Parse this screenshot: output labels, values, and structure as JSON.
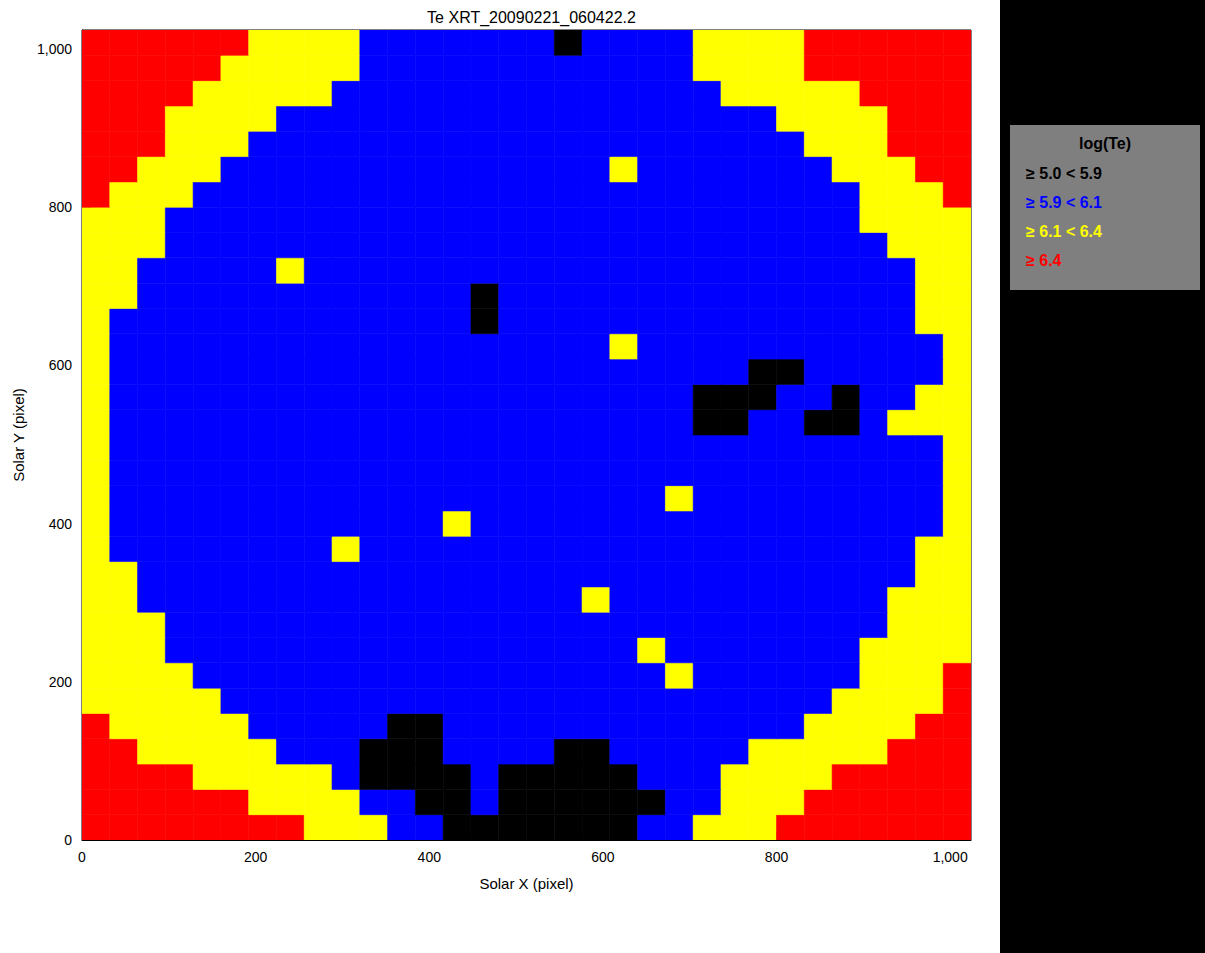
{
  "chart_data": {
    "type": "heatmap",
    "title": "Te XRT_20090221_060422.2",
    "x_label": "Solar X (pixel)",
    "y_label": "Solar Y (pixel)",
    "x": [
      16,
      48,
      80,
      112,
      144,
      176,
      208,
      240,
      272,
      304,
      336,
      368,
      400,
      432,
      464,
      496,
      528,
      560,
      592,
      624,
      656,
      688,
      720,
      752,
      784,
      816,
      848,
      880,
      912,
      944,
      976,
      1008
    ],
    "y": [
      16,
      48,
      80,
      112,
      144,
      176,
      208,
      240,
      272,
      304,
      336,
      368,
      400,
      432,
      464,
      496,
      528,
      560,
      592,
      624,
      656,
      688,
      720,
      752,
      784,
      816,
      848,
      880,
      912,
      944,
      976,
      1008
    ],
    "cells": [
      [
        6.5,
        6.5,
        6.5,
        6.5,
        6.5,
        6.5,
        6.5,
        6.5,
        6.2,
        6.2,
        6.2,
        6.0,
        6.0,
        5.8,
        5.8,
        5.8,
        5.8,
        5.8,
        5.8,
        5.8,
        6.0,
        6.0,
        6.2,
        6.2,
        6.2,
        6.5,
        6.5,
        6.5,
        6.5,
        6.5,
        6.5,
        6.5
      ],
      [
        6.5,
        6.5,
        6.5,
        6.5,
        6.5,
        6.5,
        6.2,
        6.2,
        6.2,
        6.2,
        6.0,
        6.0,
        5.8,
        5.8,
        6.0,
        5.8,
        5.8,
        5.8,
        5.8,
        5.8,
        5.8,
        6.0,
        6.0,
        6.2,
        6.2,
        6.2,
        6.5,
        6.5,
        6.5,
        6.5,
        6.5,
        6.5
      ],
      [
        6.5,
        6.5,
        6.5,
        6.5,
        6.2,
        6.2,
        6.2,
        6.2,
        6.2,
        6.0,
        5.8,
        5.8,
        5.8,
        5.8,
        6.0,
        5.8,
        5.8,
        5.8,
        5.8,
        5.8,
        6.0,
        6.0,
        6.0,
        6.2,
        6.2,
        6.2,
        6.2,
        6.5,
        6.5,
        6.5,
        6.5,
        6.5
      ],
      [
        6.5,
        6.5,
        6.2,
        6.2,
        6.2,
        6.2,
        6.2,
        6.0,
        6.0,
        6.0,
        5.8,
        5.8,
        5.8,
        6.0,
        6.0,
        6.0,
        6.0,
        5.8,
        5.8,
        6.0,
        6.0,
        6.0,
        6.0,
        6.0,
        6.2,
        6.2,
        6.2,
        6.2,
        6.2,
        6.5,
        6.5,
        6.5
      ],
      [
        6.5,
        6.2,
        6.2,
        6.2,
        6.2,
        6.2,
        6.0,
        6.0,
        6.0,
        6.0,
        6.0,
        5.8,
        5.8,
        6.0,
        6.0,
        6.0,
        6.0,
        6.0,
        6.0,
        6.0,
        6.0,
        6.0,
        6.0,
        6.0,
        6.0,
        6.0,
        6.2,
        6.2,
        6.2,
        6.2,
        6.5,
        6.5
      ],
      [
        6.2,
        6.2,
        6.2,
        6.2,
        6.2,
        6.0,
        6.0,
        6.0,
        6.0,
        6.0,
        6.0,
        6.0,
        6.0,
        6.0,
        6.0,
        6.0,
        6.0,
        6.0,
        6.0,
        6.0,
        6.0,
        6.0,
        6.0,
        6.0,
        6.0,
        6.0,
        6.0,
        6.2,
        6.2,
        6.2,
        6.2,
        6.5
      ],
      [
        6.2,
        6.2,
        6.2,
        6.2,
        6.0,
        6.0,
        6.0,
        6.0,
        6.0,
        6.0,
        6.0,
        6.0,
        6.0,
        6.0,
        6.0,
        6.0,
        6.0,
        6.0,
        6.0,
        6.0,
        6.0,
        6.2,
        6.0,
        6.0,
        6.0,
        6.0,
        6.0,
        6.0,
        6.2,
        6.2,
        6.2,
        6.5
      ],
      [
        6.2,
        6.2,
        6.2,
        6.0,
        6.0,
        6.0,
        6.0,
        6.0,
        6.0,
        6.0,
        6.0,
        6.0,
        6.0,
        6.0,
        6.0,
        6.0,
        6.0,
        6.0,
        6.0,
        6.0,
        6.2,
        6.0,
        6.0,
        6.0,
        6.0,
        6.0,
        6.0,
        6.0,
        6.2,
        6.2,
        6.2,
        6.2
      ],
      [
        6.2,
        6.2,
        6.2,
        6.0,
        6.0,
        6.0,
        6.0,
        6.0,
        6.0,
        6.0,
        6.0,
        6.0,
        6.0,
        6.0,
        6.0,
        6.0,
        6.0,
        6.0,
        6.0,
        6.0,
        6.0,
        6.0,
        6.0,
        6.0,
        6.0,
        6.0,
        6.0,
        6.0,
        6.0,
        6.2,
        6.2,
        6.2
      ],
      [
        6.2,
        6.2,
        6.0,
        6.0,
        6.0,
        6.0,
        6.0,
        6.0,
        6.0,
        6.0,
        6.0,
        6.0,
        6.0,
        6.0,
        6.0,
        6.0,
        6.0,
        6.0,
        6.2,
        6.0,
        6.0,
        6.0,
        6.0,
        6.0,
        6.0,
        6.0,
        6.0,
        6.0,
        6.0,
        6.2,
        6.2,
        6.2
      ],
      [
        6.2,
        6.2,
        6.0,
        6.0,
        6.0,
        6.0,
        6.0,
        6.0,
        6.0,
        6.0,
        6.0,
        6.0,
        6.0,
        6.0,
        6.0,
        6.0,
        6.0,
        6.0,
        6.0,
        6.0,
        6.0,
        6.0,
        6.0,
        6.0,
        6.0,
        6.0,
        6.0,
        6.0,
        6.0,
        6.0,
        6.2,
        6.2
      ],
      [
        6.2,
        6.0,
        6.0,
        6.0,
        6.0,
        6.0,
        6.0,
        6.0,
        6.0,
        6.2,
        6.0,
        6.0,
        6.0,
        6.0,
        6.0,
        6.0,
        6.0,
        6.0,
        6.0,
        6.0,
        6.0,
        6.0,
        6.0,
        6.0,
        6.0,
        6.0,
        6.0,
        6.0,
        6.0,
        6.0,
        6.2,
        6.2
      ],
      [
        6.2,
        6.0,
        6.0,
        6.0,
        6.0,
        6.0,
        6.0,
        6.0,
        6.0,
        6.0,
        6.0,
        6.0,
        6.0,
        6.2,
        6.0,
        6.0,
        6.0,
        6.0,
        6.0,
        6.0,
        6.0,
        6.0,
        6.0,
        6.0,
        6.0,
        6.0,
        6.0,
        6.0,
        6.0,
        6.0,
        6.0,
        6.2
      ],
      [
        6.2,
        6.0,
        6.0,
        6.0,
        6.0,
        6.0,
        6.0,
        6.0,
        6.0,
        6.0,
        6.0,
        6.0,
        6.0,
        6.0,
        6.0,
        6.0,
        6.0,
        6.0,
        6.0,
        6.0,
        6.0,
        6.2,
        6.0,
        6.0,
        6.0,
        6.0,
        6.0,
        6.0,
        6.0,
        6.0,
        6.0,
        6.2
      ],
      [
        6.2,
        6.0,
        6.0,
        6.0,
        6.0,
        6.0,
        6.0,
        6.0,
        6.0,
        6.0,
        6.0,
        6.0,
        6.0,
        6.0,
        6.0,
        6.0,
        6.0,
        6.0,
        6.0,
        6.0,
        6.0,
        6.0,
        6.0,
        6.0,
        6.0,
        6.0,
        6.0,
        6.0,
        6.0,
        6.0,
        6.0,
        6.2
      ],
      [
        6.2,
        6.0,
        6.0,
        6.0,
        6.0,
        6.0,
        6.0,
        6.0,
        6.0,
        6.0,
        6.0,
        6.0,
        6.0,
        6.0,
        6.0,
        6.0,
        6.0,
        6.0,
        6.0,
        6.0,
        6.0,
        6.0,
        6.0,
        6.0,
        6.0,
        6.0,
        6.0,
        6.0,
        6.0,
        6.0,
        6.0,
        6.2
      ],
      [
        6.2,
        6.0,
        6.0,
        6.0,
        6.0,
        6.0,
        6.0,
        6.0,
        6.0,
        6.0,
        6.0,
        6.0,
        6.0,
        6.0,
        6.0,
        6.0,
        6.0,
        6.0,
        6.0,
        6.0,
        6.0,
        6.0,
        5.8,
        5.8,
        6.0,
        6.0,
        5.8,
        5.8,
        6.0,
        6.2,
        6.2,
        6.2
      ],
      [
        6.2,
        6.0,
        6.0,
        6.0,
        6.0,
        6.0,
        6.0,
        6.0,
        6.0,
        6.0,
        6.0,
        6.0,
        6.0,
        6.0,
        6.0,
        6.0,
        6.0,
        6.0,
        6.0,
        6.0,
        6.0,
        6.0,
        5.8,
        5.8,
        5.8,
        6.0,
        6.0,
        5.8,
        6.0,
        6.0,
        6.2,
        6.2
      ],
      [
        6.2,
        6.0,
        6.0,
        6.0,
        6.0,
        6.0,
        6.0,
        6.0,
        6.0,
        6.0,
        6.0,
        6.0,
        6.0,
        6.0,
        6.0,
        6.0,
        6.0,
        6.0,
        6.0,
        6.0,
        6.0,
        6.0,
        6.0,
        6.0,
        5.8,
        5.8,
        6.0,
        6.0,
        6.0,
        6.0,
        6.0,
        6.2
      ],
      [
        6.2,
        6.0,
        6.0,
        6.0,
        6.0,
        6.0,
        6.0,
        6.0,
        6.0,
        6.0,
        6.0,
        6.0,
        6.0,
        6.0,
        6.0,
        6.0,
        6.0,
        6.0,
        6.0,
        6.2,
        6.0,
        6.0,
        6.0,
        6.0,
        6.0,
        6.0,
        6.0,
        6.0,
        6.0,
        6.0,
        6.0,
        6.2
      ],
      [
        6.2,
        6.0,
        6.0,
        6.0,
        6.0,
        6.0,
        6.0,
        6.0,
        6.0,
        6.0,
        6.0,
        6.0,
        6.0,
        6.0,
        5.8,
        6.0,
        6.0,
        6.0,
        6.0,
        6.0,
        6.0,
        6.0,
        6.0,
        6.0,
        6.0,
        6.0,
        6.0,
        6.0,
        6.0,
        6.0,
        6.2,
        6.2
      ],
      [
        6.2,
        6.2,
        6.0,
        6.0,
        6.0,
        6.0,
        6.0,
        6.0,
        6.0,
        6.0,
        6.0,
        6.0,
        6.0,
        6.0,
        5.8,
        6.0,
        6.0,
        6.0,
        6.0,
        6.0,
        6.0,
        6.0,
        6.0,
        6.0,
        6.0,
        6.0,
        6.0,
        6.0,
        6.0,
        6.0,
        6.2,
        6.2
      ],
      [
        6.2,
        6.2,
        6.0,
        6.0,
        6.0,
        6.0,
        6.0,
        6.2,
        6.0,
        6.0,
        6.0,
        6.0,
        6.0,
        6.0,
        6.0,
        6.0,
        6.0,
        6.0,
        6.0,
        6.0,
        6.0,
        6.0,
        6.0,
        6.0,
        6.0,
        6.0,
        6.0,
        6.0,
        6.0,
        6.0,
        6.2,
        6.2
      ],
      [
        6.2,
        6.2,
        6.2,
        6.0,
        6.0,
        6.0,
        6.0,
        6.0,
        6.0,
        6.0,
        6.0,
        6.0,
        6.0,
        6.0,
        6.0,
        6.0,
        6.0,
        6.0,
        6.0,
        6.0,
        6.0,
        6.0,
        6.0,
        6.0,
        6.0,
        6.0,
        6.0,
        6.0,
        6.0,
        6.2,
        6.2,
        6.2
      ],
      [
        6.2,
        6.2,
        6.2,
        6.0,
        6.0,
        6.0,
        6.0,
        6.0,
        6.0,
        6.0,
        6.0,
        6.0,
        6.0,
        6.0,
        6.0,
        6.0,
        6.0,
        6.0,
        6.0,
        6.0,
        6.0,
        6.0,
        6.0,
        6.0,
        6.0,
        6.0,
        6.0,
        6.0,
        6.2,
        6.2,
        6.2,
        6.2
      ],
      [
        6.5,
        6.2,
        6.2,
        6.2,
        6.0,
        6.0,
        6.0,
        6.0,
        6.0,
        6.0,
        6.0,
        6.0,
        6.0,
        6.0,
        6.0,
        6.0,
        6.0,
        6.0,
        6.0,
        6.0,
        6.0,
        6.0,
        6.0,
        6.0,
        6.0,
        6.0,
        6.0,
        6.0,
        6.2,
        6.2,
        6.2,
        6.5
      ],
      [
        6.5,
        6.5,
        6.2,
        6.2,
        6.2,
        6.0,
        6.0,
        6.0,
        6.0,
        6.0,
        6.0,
        6.0,
        6.0,
        6.0,
        6.0,
        6.0,
        6.0,
        6.0,
        6.0,
        6.2,
        6.0,
        6.0,
        6.0,
        6.0,
        6.0,
        6.0,
        6.0,
        6.2,
        6.2,
        6.2,
        6.5,
        6.5
      ],
      [
        6.5,
        6.5,
        6.5,
        6.2,
        6.2,
        6.2,
        6.0,
        6.0,
        6.0,
        6.0,
        6.0,
        6.0,
        6.0,
        6.0,
        6.0,
        6.0,
        6.0,
        6.0,
        6.0,
        6.0,
        6.0,
        6.0,
        6.0,
        6.0,
        6.0,
        6.0,
        6.2,
        6.2,
        6.2,
        6.5,
        6.5,
        6.5
      ],
      [
        6.5,
        6.5,
        6.5,
        6.2,
        6.2,
        6.2,
        6.2,
        6.0,
        6.0,
        6.0,
        6.0,
        6.0,
        6.0,
        6.0,
        6.0,
        6.0,
        6.0,
        6.0,
        6.0,
        6.0,
        6.0,
        6.0,
        6.0,
        6.0,
        6.0,
        6.2,
        6.2,
        6.2,
        6.2,
        6.5,
        6.5,
        6.5
      ],
      [
        6.5,
        6.5,
        6.5,
        6.5,
        6.2,
        6.2,
        6.2,
        6.2,
        6.2,
        6.0,
        6.0,
        6.0,
        6.0,
        6.0,
        6.0,
        6.0,
        6.0,
        6.0,
        6.0,
        6.0,
        6.0,
        6.0,
        6.0,
        6.2,
        6.2,
        6.2,
        6.2,
        6.2,
        6.5,
        6.5,
        6.5,
        6.5
      ],
      [
        6.5,
        6.5,
        6.5,
        6.5,
        6.5,
        6.2,
        6.2,
        6.2,
        6.2,
        6.2,
        6.0,
        6.0,
        6.0,
        6.0,
        6.0,
        6.0,
        6.0,
        6.0,
        6.0,
        6.0,
        6.0,
        6.0,
        6.2,
        6.2,
        6.2,
        6.2,
        6.5,
        6.5,
        6.5,
        6.5,
        6.5,
        6.5
      ],
      [
        6.5,
        6.5,
        6.5,
        6.5,
        6.5,
        6.5,
        6.2,
        6.2,
        6.2,
        6.2,
        6.0,
        6.0,
        6.0,
        6.0,
        6.0,
        6.0,
        6.0,
        5.8,
        6.0,
        6.0,
        6.0,
        6.0,
        6.2,
        6.2,
        6.2,
        6.2,
        6.5,
        6.5,
        6.5,
        6.5,
        6.5,
        6.5
      ]
    ],
    "xlim": [
      0,
      1024
    ],
    "ylim": [
      0,
      1024
    ],
    "xticks": [
      0,
      200,
      400,
      600,
      800,
      1000
    ],
    "yticks": [
      0,
      200,
      400,
      600,
      800,
      1000
    ],
    "grid": false,
    "color_title": "log(Te)",
    "color_bins": [
      5.0,
      5.9,
      6.1,
      6.4
    ],
    "color_labels": [
      "≥ 5.0 < 5.9",
      "≥ 5.9 < 6.1",
      "≥ 6.1 < 6.4",
      "≥ 6.4"
    ],
    "colors": [
      "#000000",
      "#0000ff",
      "#ffff00",
      "#ff0000"
    ],
    "legend": "right"
  }
}
